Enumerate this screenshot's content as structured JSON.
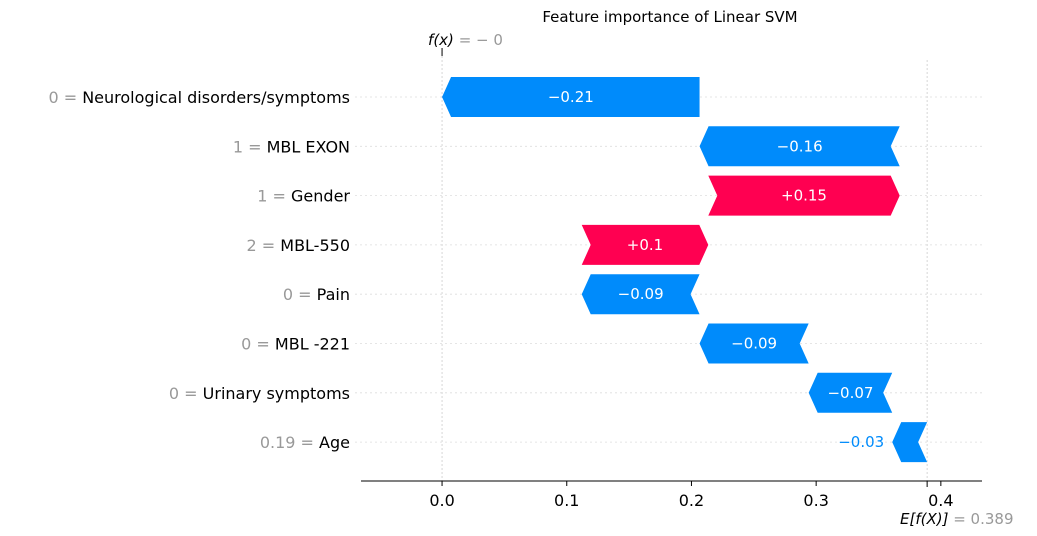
{
  "chart_data": {
    "type": "bar",
    "title": "Feature importance of Linear SVM",
    "fx_label": "f(x)",
    "fx_value": "= − 0",
    "fx_numeric": 0.0,
    "efx_label": "E[f(X)]",
    "efx_value": "= 0.389",
    "efx_numeric": 0.389,
    "xlim": [
      -0.065,
      0.433
    ],
    "xticks": [
      0.0,
      0.1,
      0.2,
      0.3,
      0.4
    ],
    "xtick_labels": [
      "0.0",
      "0.1",
      "0.2",
      "0.3",
      "0.4"
    ],
    "colors": {
      "positive": "#ff0051",
      "negative": "#008bfb",
      "feature_value": "#999999",
      "grid": "#cccccc"
    },
    "features": [
      {
        "value": "0",
        "name": "Neurological disorders/symptoms",
        "contribution": -0.21,
        "label": "−0.21",
        "start": 0.2065,
        "end": 0.0
      },
      {
        "value": "1",
        "name": "MBL EXON",
        "contribution": -0.16,
        "label": "−0.16",
        "start": 0.367,
        "end": 0.2065
      },
      {
        "value": "1",
        "name": "Gender",
        "contribution": 0.15,
        "label": "+0.15",
        "start": 0.2135,
        "end": 0.367
      },
      {
        "value": "2",
        "name": "MBL-550",
        "contribution": 0.1,
        "label": "+0.1",
        "start": 0.112,
        "end": 0.2135
      },
      {
        "value": "0",
        "name": "Pain",
        "contribution": -0.09,
        "label": "−0.09",
        "start": 0.2065,
        "end": 0.112
      },
      {
        "value": "0",
        "name": "MBL -221",
        "contribution": -0.09,
        "label": "−0.09",
        "start": 0.294,
        "end": 0.2065
      },
      {
        "value": "0",
        "name": "Urinary symptoms",
        "contribution": -0.07,
        "label": "−0.07",
        "start": 0.361,
        "end": 0.294
      },
      {
        "value": "0.19",
        "name": "Age",
        "contribution": -0.03,
        "label": "−0.03",
        "start": 0.389,
        "end": 0.361
      }
    ]
  }
}
